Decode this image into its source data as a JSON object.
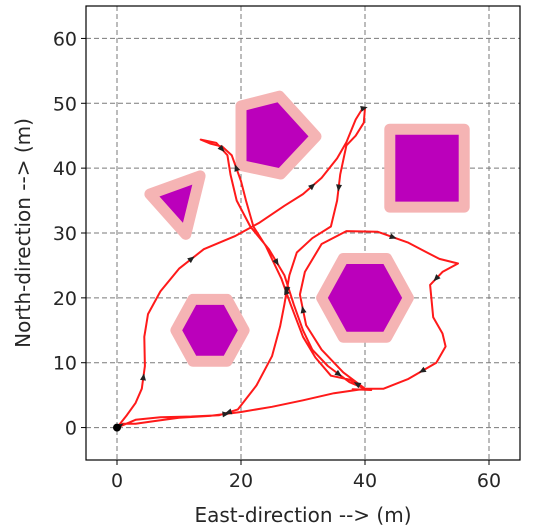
{
  "chart_data": {
    "type": "path-plot",
    "xlabel": "East-direction --> (m)",
    "ylabel": "North-direction --> (m)",
    "xlim": [
      -5,
      65
    ],
    "ylim": [
      -5,
      65
    ],
    "xticks": [
      0,
      20,
      40,
      60
    ],
    "yticks": [
      0,
      10,
      20,
      30,
      40,
      50,
      60
    ],
    "grid": true,
    "colors": {
      "path": "#ff1a1a",
      "obstacle_fill": "#bb00bb",
      "obstacle_margin": "#f5b4b4",
      "start_marker": "#000000"
    },
    "start": [
      0,
      0
    ],
    "obstacles": [
      {
        "shape": "pentagon",
        "vertices": [
          [
            20,
            49.6
          ],
          [
            26.2,
            51.1
          ],
          [
            32.1,
            44.9
          ],
          [
            26.4,
            39.1
          ],
          [
            20,
            40.4
          ]
        ]
      },
      {
        "shape": "square",
        "vertices": [
          [
            44,
            46
          ],
          [
            56,
            46
          ],
          [
            56,
            34
          ],
          [
            44,
            34
          ]
        ]
      },
      {
        "shape": "triangle",
        "vertices": [
          [
            5.3,
            36
          ],
          [
            13.4,
            38.8
          ],
          [
            11.1,
            29.8
          ]
        ]
      },
      {
        "shape": "hexagon",
        "center": [
          40,
          20
        ],
        "radius": 7
      },
      {
        "shape": "hexagon",
        "center": [
          15,
          15
        ],
        "radius": 5.5
      }
    ],
    "path": [
      [
        0,
        0
      ],
      [
        1.5,
        1.8
      ],
      [
        3,
        3.8
      ],
      [
        4,
        6
      ],
      [
        4.5,
        9.5
      ],
      [
        4.4,
        14
      ],
      [
        5,
        17.5
      ],
      [
        7,
        21
      ],
      [
        10,
        24.5
      ],
      [
        14,
        27.5
      ],
      [
        19,
        29.5
      ],
      [
        23,
        31.6
      ],
      [
        27,
        34.2
      ],
      [
        30,
        36
      ],
      [
        33,
        38.5
      ],
      [
        35.5,
        41.5
      ],
      [
        37,
        44
      ],
      [
        38.5,
        47.5
      ],
      [
        39.6,
        49.2
      ],
      [
        40,
        49.3
      ],
      [
        39.8,
        47
      ],
      [
        38.5,
        45
      ],
      [
        37,
        43.5
      ],
      [
        36,
        39
      ],
      [
        35.5,
        35
      ],
      [
        34.5,
        31
      ],
      [
        31.5,
        29.2
      ],
      [
        29,
        27
      ],
      [
        27.8,
        23.5
      ],
      [
        27,
        19
      ],
      [
        26.3,
        15.6
      ],
      [
        25,
        11
      ],
      [
        22.5,
        6.5
      ],
      [
        19.5,
        2.8
      ],
      [
        16.5,
        1.9
      ],
      [
        12,
        1.7
      ],
      [
        7,
        1.6
      ],
      [
        3,
        1.2
      ],
      [
        0,
        0
      ],
      [
        1,
        0.6
      ],
      [
        3,
        0.6
      ],
      [
        6,
        1
      ],
      [
        10,
        1.5
      ],
      [
        15,
        1.8
      ],
      [
        20,
        2.4
      ],
      [
        25,
        3.2
      ],
      [
        30,
        4.2
      ],
      [
        35,
        5.3
      ],
      [
        40,
        6
      ],
      [
        37.5,
        7.4
      ],
      [
        34.5,
        8
      ],
      [
        32,
        10.8
      ],
      [
        30,
        14
      ],
      [
        28,
        19
      ],
      [
        26.5,
        23
      ],
      [
        24,
        28
      ],
      [
        22,
        31
      ],
      [
        20.8,
        35
      ],
      [
        20,
        38
      ],
      [
        18.5,
        42
      ],
      [
        17,
        43.3
      ],
      [
        15,
        43.8
      ],
      [
        13.5,
        44.4
      ],
      [
        16,
        43.9
      ],
      [
        17.8,
        42
      ],
      [
        18.3,
        39
      ],
      [
        19.3,
        35
      ],
      [
        21.5,
        31
      ],
      [
        24.5,
        27.5
      ],
      [
        27,
        23.5
      ],
      [
        28.5,
        19
      ],
      [
        30,
        15
      ],
      [
        31.5,
        12
      ],
      [
        34,
        9.5
      ],
      [
        37.5,
        7
      ],
      [
        40,
        6
      ],
      [
        36.5,
        8.5
      ],
      [
        33,
        12
      ],
      [
        30.5,
        15.8
      ],
      [
        29.5,
        20.5
      ],
      [
        30.3,
        24
      ],
      [
        33,
        28.3
      ],
      [
        37,
        30.3
      ],
      [
        42,
        30.2
      ],
      [
        47,
        28.5
      ],
      [
        50,
        27
      ],
      [
        52,
        26
      ],
      [
        55,
        25.3
      ],
      [
        52.5,
        24
      ],
      [
        50.5,
        22
      ],
      [
        51,
        17
      ],
      [
        52.5,
        14.5
      ],
      [
        53,
        12.5
      ],
      [
        51.5,
        10
      ],
      [
        47,
        7.5
      ],
      [
        43,
        6
      ],
      [
        40,
        6
      ],
      [
        41,
        5.8
      ],
      [
        38,
        5.9
      ]
    ]
  }
}
